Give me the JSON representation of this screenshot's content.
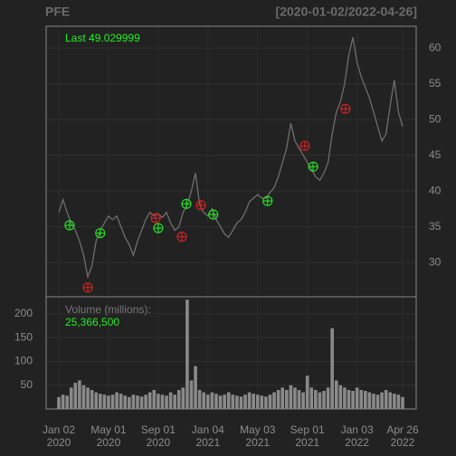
{
  "chart_data": {
    "type": "line",
    "title": "PFE",
    "subtitle": "[2020-01-02/2022-04-26]",
    "last_label": "Last 49.029999",
    "color": "#6e6e6e",
    "categories": [
      "Jan 02\n2020",
      null,
      null,
      null,
      null,
      null,
      null,
      null,
      null,
      null,
      null,
      null,
      "May 01\n2020",
      null,
      null,
      null,
      null,
      null,
      null,
      null,
      null,
      null,
      null,
      null,
      "Sep 01\n2020",
      null,
      null,
      null,
      null,
      null,
      null,
      null,
      null,
      null,
      null,
      null,
      "Jan 04\n2021",
      null,
      null,
      null,
      null,
      null,
      null,
      null,
      null,
      null,
      null,
      null,
      "May 03\n2021",
      null,
      null,
      null,
      null,
      null,
      null,
      null,
      null,
      null,
      null,
      null,
      "Sep 01\n2021",
      null,
      null,
      null,
      null,
      null,
      null,
      null,
      null,
      null,
      null,
      null,
      "Jan 03\n2022",
      null,
      null,
      null,
      null,
      null,
      null,
      null,
      null,
      null,
      null,
      "Apr 26\n2022"
    ],
    "values": [
      37,
      38.8,
      37,
      35.5,
      34.5,
      33,
      31,
      28,
      29.5,
      33,
      34.5,
      35.5,
      36.5,
      36,
      36.5,
      35,
      33.5,
      32.5,
      31,
      33,
      34.5,
      36,
      37,
      36.5,
      36.8,
      36.3,
      37,
      35.5,
      34.5,
      35,
      37,
      38,
      40,
      42.5,
      38,
      37,
      36.5,
      37.5,
      36,
      35,
      34,
      33.5,
      34.5,
      35.5,
      36,
      37,
      38.5,
      39,
      39.5,
      39,
      39,
      39.8,
      40.5,
      42,
      44,
      46,
      49.5,
      47,
      46,
      45,
      44,
      43,
      42,
      41.5,
      42.5,
      44,
      48,
      51,
      52.5,
      55,
      59,
      61.5,
      58,
      56,
      54.5,
      53,
      51,
      49,
      47,
      48,
      52,
      55.5,
      51,
      49.03
    ],
    "ylim": [
      25.2,
      63.05
    ],
    "yticks": [
      30,
      35,
      40,
      45,
      50,
      55,
      60
    ],
    "grid": true,
    "markers": [
      {
        "x": 2.6,
        "y": 35.2,
        "color": "#22dd22"
      },
      {
        "x": 10,
        "y": 34.1,
        "color": "#22dd22"
      },
      {
        "x": 7,
        "y": 26.5,
        "color": "#cc2222"
      },
      {
        "x": 23.4,
        "y": 36.2,
        "color": "#cc2222"
      },
      {
        "x": 24,
        "y": 34.8,
        "color": "#22dd22"
      },
      {
        "x": 29.7,
        "y": 33.6,
        "color": "#cc2222"
      },
      {
        "x": 30.8,
        "y": 38.2,
        "color": "#22dd22"
      },
      {
        "x": 34.3,
        "y": 38,
        "color": "#cc2222"
      },
      {
        "x": 37.3,
        "y": 36.7,
        "color": "#22dd22"
      },
      {
        "x": 50.4,
        "y": 38.6,
        "color": "#22dd22"
      },
      {
        "x": 59.4,
        "y": 46.3,
        "color": "#cc2222"
      },
      {
        "x": 61.4,
        "y": 43.4,
        "color": "#22dd22"
      },
      {
        "x": 69.2,
        "y": 51.5,
        "color": "#cc2222"
      }
    ],
    "volume": {
      "label": "Volume (millions):",
      "last": "25,366,500",
      "color": "#8a8a8a",
      "values": [
        25,
        30,
        28,
        45,
        55,
        60,
        50,
        45,
        40,
        35,
        32,
        30,
        28,
        30,
        35,
        32,
        28,
        25,
        30,
        28,
        26,
        30,
        35,
        40,
        32,
        30,
        28,
        35,
        30,
        40,
        45,
        230,
        60,
        90,
        40,
        35,
        30,
        35,
        32,
        28,
        30,
        35,
        30,
        28,
        26,
        30,
        35,
        32,
        30,
        28,
        26,
        30,
        35,
        40,
        45,
        40,
        50,
        45,
        40,
        35,
        70,
        45,
        40,
        35,
        38,
        45,
        170,
        60,
        50,
        45,
        40,
        38,
        45,
        40,
        38,
        35,
        32,
        30,
        35,
        40,
        35,
        32,
        30,
        25
      ],
      "ylim": [
        0,
        236
      ],
      "yticks": [
        50,
        100,
        150,
        200
      ]
    }
  }
}
